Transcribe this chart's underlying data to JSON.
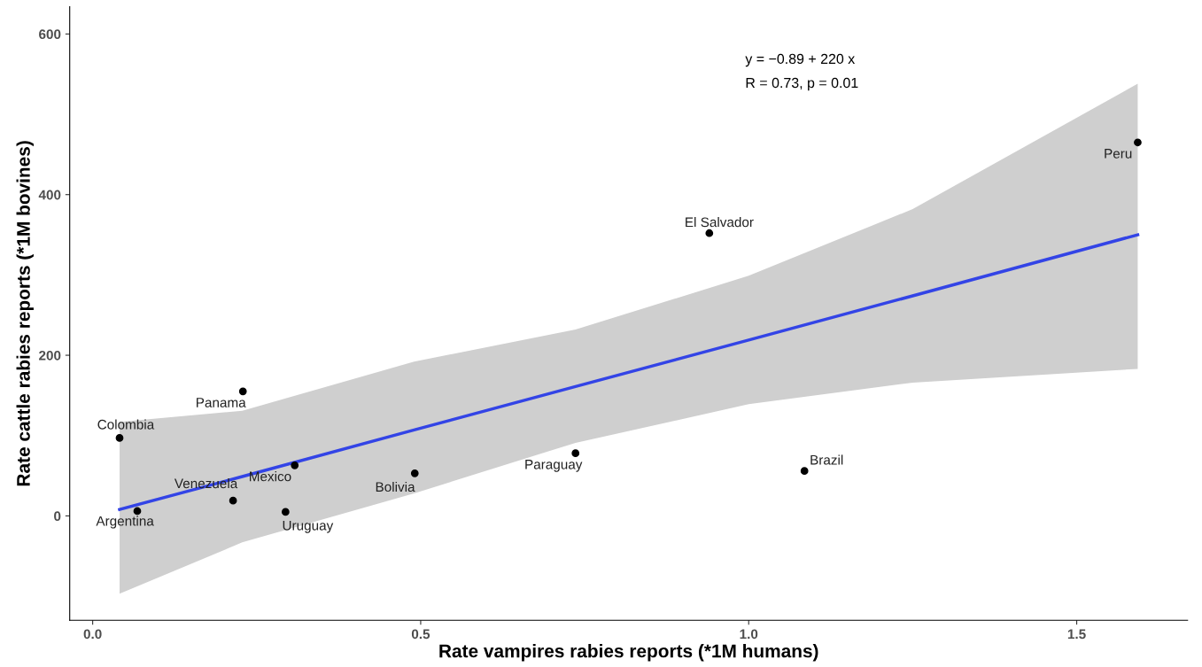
{
  "chart_data": {
    "type": "scatter",
    "xlabel": "Rate vampires rabies reports (*1M humans)",
    "ylabel": "Rate cattle rabies reports (*1M bovines)",
    "xlim": [
      -0.035,
      1.669
    ],
    "ylim": [
      -130,
      634
    ],
    "xticks": [
      {
        "value": 0,
        "label": "0.0"
      },
      {
        "value": 0.5,
        "label": "0.5"
      },
      {
        "value": 1,
        "label": "1.0"
      },
      {
        "value": 1.5,
        "label": "1.5"
      }
    ],
    "yticks": [
      0,
      200,
      400,
      600
    ],
    "grid": false,
    "series": [
      {
        "type": "line",
        "color": "#3344e6",
        "x": [
          0.041,
          0.228,
          0.49,
          0.736,
          1.0,
          1.25,
          1.593
        ],
        "values": [
          8,
          49,
          107,
          161,
          219,
          274,
          350
        ],
        "lower": [
          -97,
          -33,
          28,
          91,
          139,
          166,
          183
        ],
        "upper": [
          117,
          131,
          192,
          232,
          299,
          382,
          538
        ]
      },
      {
        "marker": "circle",
        "color": "#000000",
        "x": [
          0.041,
          0.229,
          0.308,
          0.214,
          0.294,
          0.491,
          0.068,
          0.94,
          1.085,
          1.593,
          0.736
        ],
        "values": [
          97,
          155,
          63,
          19,
          5,
          53,
          6,
          352,
          56,
          465,
          78
        ]
      }
    ],
    "annotations": [
      {
        "text": "Colombia",
        "x": 0.041,
        "y": 97
      },
      {
        "text": "Panama",
        "x": 0.229,
        "y": 155
      },
      {
        "text": "Mexico",
        "x": 0.308,
        "y": 63
      },
      {
        "text": "Venezuela",
        "x": 0.214,
        "y": 19
      },
      {
        "text": "Uruguay",
        "x": 0.294,
        "y": 5
      },
      {
        "text": "Bolivia",
        "x": 0.491,
        "y": 53
      },
      {
        "text": "Argentina",
        "x": 0.068,
        "y": 6
      },
      {
        "text": "El Salvador",
        "x": 0.94,
        "y": 352
      },
      {
        "text": "Brazil",
        "x": 1.085,
        "y": 56
      },
      {
        "text": "Peru",
        "x": 1.593,
        "y": 465
      },
      {
        "text": "Paraguay",
        "x": 0.736,
        "y": 78
      },
      "y = −0.89 + 220 x",
      "R = 0.73, p = 0.01"
    ]
  }
}
